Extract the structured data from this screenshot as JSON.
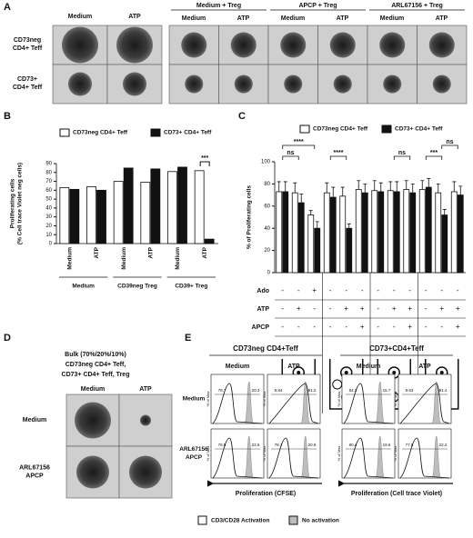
{
  "panel_a": {
    "letter": "A",
    "columns": [
      "Medium",
      "ATP"
    ],
    "groups": [
      {
        "title": "Medium + Treg",
        "columns": [
          "Medium",
          "ATP"
        ]
      },
      {
        "title": "APCP + Treg",
        "columns": [
          "Medium",
          "ATP"
        ]
      },
      {
        "title": "ARL67156 + Treg",
        "columns": [
          "Medium",
          "ATP"
        ]
      }
    ],
    "rows": [
      [
        "CD73neg",
        "CD4+ Teff"
      ],
      [
        "CD73+",
        "CD4+ Teff"
      ]
    ]
  },
  "chart_data": [
    {
      "type": "bar",
      "letter": "B",
      "y_label": [
        "Proliferating cells",
        "(% Cell trace Violet neg cells)"
      ],
      "categories": [
        "Medium",
        "ATP",
        "Medium",
        "ATP",
        "Medium",
        "ATP"
      ],
      "groups": [
        "Medium",
        "CD39neg Treg",
        "CD39+ Treg"
      ],
      "series": [
        {
          "name": "CD73neg CD4+ Teff",
          "color": "#ffffff",
          "values": [
            63,
            64,
            70,
            69,
            81,
            82
          ]
        },
        {
          "name": "CD73+ CD4+ Teff",
          "color": "#111111",
          "values": [
            61,
            60,
            85,
            84,
            86,
            5
          ]
        }
      ],
      "ylim": [
        0,
        90
      ],
      "yticks": [
        0,
        10,
        20,
        30,
        40,
        50,
        60,
        70,
        80,
        90
      ],
      "annotations": [
        "***"
      ]
    },
    {
      "type": "bar",
      "letter": "C",
      "y_label": "% of Proliferating cells",
      "categories": [
        null,
        null,
        null,
        null,
        null,
        null,
        null,
        null,
        null,
        null,
        null,
        null
      ],
      "series": [
        {
          "name": "CD73neg CD4+ Teff",
          "color": "#ffffff",
          "values": [
            73,
            72,
            52,
            72,
            69,
            75,
            74,
            74,
            75,
            75,
            72,
            73
          ],
          "errors": [
            9,
            9,
            4,
            9,
            8,
            8,
            9,
            8,
            8,
            8,
            8,
            9
          ]
        },
        {
          "name": "CD73+ CD4+ Teff",
          "color": "#111111",
          "values": [
            73,
            63,
            40,
            68,
            40,
            72,
            73,
            73,
            72,
            77,
            52,
            70
          ],
          "errors": [
            9,
            8,
            6,
            9,
            4,
            8,
            8,
            9,
            8,
            8,
            5,
            8
          ]
        }
      ],
      "ylim": [
        0,
        100
      ],
      "yticks": [
        0,
        20,
        40,
        60,
        80,
        100
      ],
      "annotations": [
        "ns",
        "****",
        "****",
        "ns",
        "***",
        "ns"
      ],
      "conditions": [
        {
          "name": "Ado",
          "signs": [
            "-",
            "-",
            "+",
            "-",
            "-",
            "-",
            "-",
            "-",
            "-",
            "-",
            "-",
            "-"
          ]
        },
        {
          "name": "ATP",
          "signs": [
            "-",
            "+",
            "-",
            "-",
            "+",
            "+",
            "-",
            "+",
            "+",
            "-",
            "+",
            "+"
          ]
        },
        {
          "name": "APCP",
          "signs": [
            "-",
            "-",
            "-",
            "-",
            "-",
            "+",
            "-",
            "-",
            "+",
            "-",
            "-",
            "+"
          ]
        }
      ]
    }
  ],
  "panel_d": {
    "letter": "D",
    "title": [
      "Bulk (70%/20%/10%)",
      "CD73neg CD4+ Teff,",
      "CD73+ CD4+ Teff, Treg"
    ],
    "columns": [
      "Medium",
      "ATP"
    ],
    "rows": [
      [
        "Medium"
      ],
      [
        "ARL67156",
        "APCP"
      ]
    ]
  },
  "panel_e": {
    "letter": "E",
    "titles": [
      "CD73neg CD4+Teff",
      "CD73+CD4+Teff"
    ],
    "columns": [
      "Medium",
      "ATP",
      "Medium",
      "ATP"
    ],
    "rows": [
      [
        "Medium"
      ],
      [
        "ARL67156",
        "APCP"
      ]
    ],
    "y_label": "% of Max",
    "gates": [
      [
        [
          79.7,
          20.3
        ],
        [
          8.84,
          91.2
        ],
        [
          84.3,
          15.7
        ],
        [
          8.63,
          91.4
        ]
      ],
      [
        [
          76.5,
          23.5
        ],
        [
          79.1,
          20.9
        ],
        [
          80.4,
          19.6
        ],
        [
          77.8,
          22.2
        ]
      ]
    ],
    "x_labels": [
      "Proliferation (CFSE)",
      "Proliferation (Cell trace Violet)"
    ],
    "legend": [
      "CD3/CD28 Activation",
      "No activation"
    ]
  }
}
